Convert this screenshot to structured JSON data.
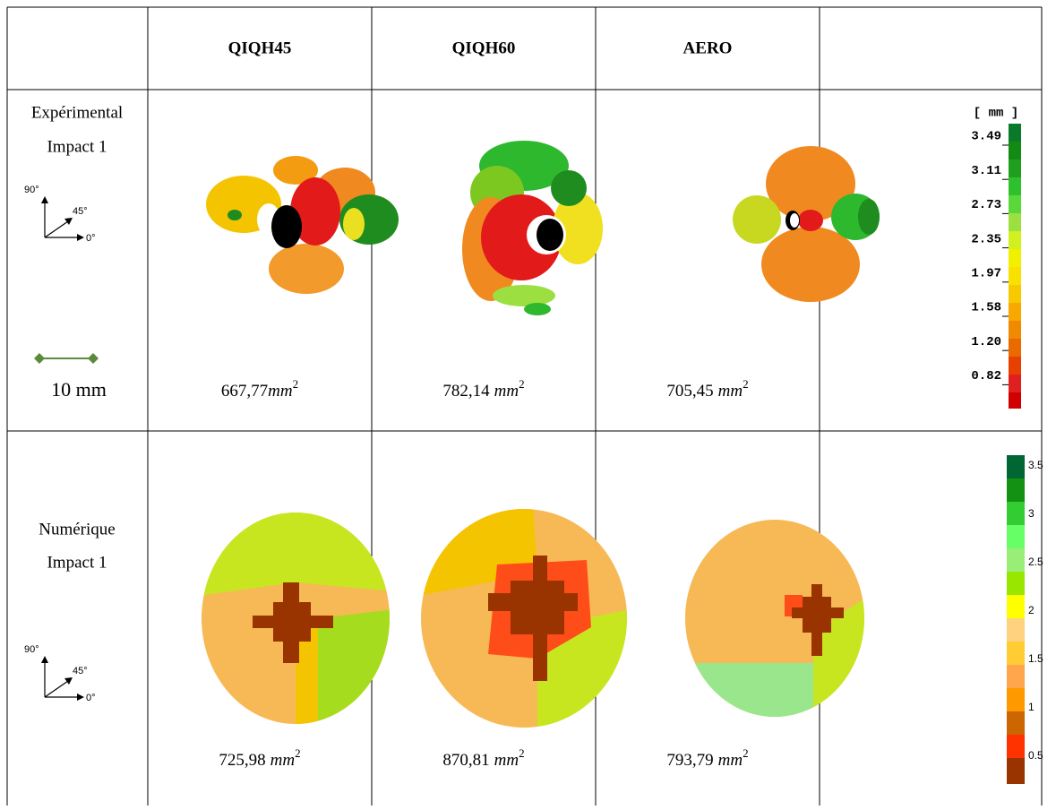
{
  "header": {
    "columns": [
      "QIQH45",
      "QIQH60",
      "AERO"
    ]
  },
  "rows": [
    {
      "label": "Expérimental",
      "impact": "Impact 1",
      "axes": {
        "y": "90°",
        "diag": "45°",
        "x": "0°"
      },
      "scale": "10 mm",
      "areas": [
        {
          "number": "667,77",
          "unit": "mm",
          "exp": "2"
        },
        {
          "number": "782,14",
          "unit": "mm",
          "exp": "2"
        },
        {
          "number": "705,45",
          "unit": "mm",
          "exp": "2"
        }
      ],
      "legend": {
        "unit": "[ mm ]",
        "ticks": [
          "3.49",
          "3.11",
          "2.73",
          "2.35",
          "1.97",
          "1.58",
          "1.20",
          "0.82"
        ]
      }
    },
    {
      "label": "Numérique",
      "impact": "Impact 1",
      "axes": {
        "y": "90°",
        "diag": "45°",
        "x": "0°"
      },
      "areas": [
        {
          "number": "725,98",
          "unit": "mm",
          "exp": "2"
        },
        {
          "number": "870,81",
          "unit": "mm",
          "exp": "2"
        },
        {
          "number": "793,79",
          "unit": "mm",
          "exp": "2"
        }
      ],
      "legend": {
        "ticks": [
          "3.5",
          "3",
          "2.5",
          "2",
          "1.5",
          "1",
          "0.5"
        ]
      }
    }
  ]
}
